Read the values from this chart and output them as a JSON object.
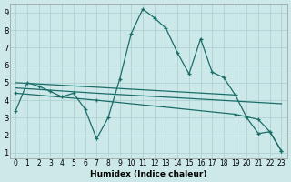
{
  "xlabel": "Humidex (Indice chaleur)",
  "bg_color": "#cce8e8",
  "grid_color": "#aacece",
  "line_color": "#1a6e6a",
  "xlim_min": -0.5,
  "xlim_max": 23.5,
  "ylim_min": 0.7,
  "ylim_max": 9.5,
  "xticks": [
    0,
    1,
    2,
    3,
    4,
    5,
    6,
    7,
    8,
    9,
    10,
    11,
    12,
    13,
    14,
    15,
    16,
    17,
    18,
    19,
    20,
    21,
    22,
    23
  ],
  "yticks": [
    1,
    2,
    3,
    4,
    5,
    6,
    7,
    8,
    9
  ],
  "series": [
    {
      "x": [
        0,
        1,
        2,
        3,
        4,
        5,
        6,
        7,
        8,
        9,
        10,
        11,
        12,
        13,
        14,
        15,
        16,
        17,
        18,
        19,
        20,
        21,
        22,
        23
      ],
      "y": [
        3.4,
        5.0,
        4.8,
        4.5,
        4.2,
        4.4,
        3.5,
        1.8,
        3.0,
        5.2,
        7.8,
        9.2,
        8.7,
        8.1,
        6.7,
        5.5,
        7.5,
        5.6,
        5.3,
        4.3,
        3.0,
        2.1,
        2.2,
        1.1
      ],
      "dashed": false,
      "markers": true
    },
    {
      "x": [
        0,
        19
      ],
      "y": [
        5.0,
        4.3
      ],
      "dashed": false,
      "markers": false
    },
    {
      "x": [
        0,
        7,
        23
      ],
      "y": [
        4.7,
        4.4,
        3.8
      ],
      "dashed": false,
      "markers": false
    },
    {
      "x": [
        0,
        7,
        19,
        21,
        22,
        23
      ],
      "y": [
        4.4,
        4.0,
        3.2,
        2.9,
        2.2,
        1.1
      ],
      "dashed": false,
      "markers": true
    }
  ]
}
